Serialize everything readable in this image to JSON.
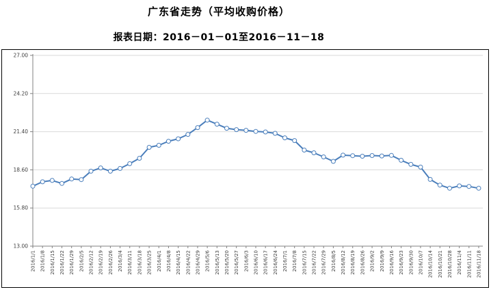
{
  "header": {
    "title": "广东省走势（平均收购价格）",
    "subtitle": "报表日期：2016－01－01至2016－11－18"
  },
  "chart_data": {
    "type": "line",
    "title": "广东省走势（平均收购价格）",
    "subtitle": "报表日期：2016－01－01至2016－11－18",
    "x": [
      "2016/1/1",
      "2016/1/8",
      "2016/1/15",
      "2016/1/22",
      "2016/1/29",
      "2016/2/5",
      "2016/2/12",
      "2016/2/19",
      "2016/2/26",
      "2016/3/4",
      "2016/3/11",
      "2016/3/18",
      "2016/3/25",
      "2016/4/1",
      "2016/4/8",
      "2016/4/15",
      "2016/4/22",
      "2016/4/29",
      "2016/5/6",
      "2016/5/13",
      "2016/5/20",
      "2016/5/27",
      "2016/6/3",
      "2016/6/10",
      "2016/6/17",
      "2016/6/24",
      "2016/7/1",
      "2016/7/8",
      "2016/7/15",
      "2016/7/22",
      "2016/7/29",
      "2016/8/5",
      "2016/8/12",
      "2016/8/19",
      "2016/8/26",
      "2016/9/2",
      "2016/9/9",
      "2016/9/16",
      "2016/9/23",
      "2016/9/30",
      "2016/10/7",
      "2016/10/14",
      "2016/10/21",
      "2016/10/28",
      "2016/11/4",
      "2016/11/11",
      "2016/11/18"
    ],
    "values": [
      17.4,
      17.72,
      17.82,
      17.6,
      17.93,
      17.88,
      18.5,
      18.74,
      18.5,
      18.7,
      19.05,
      19.45,
      20.25,
      20.4,
      20.7,
      20.88,
      21.2,
      21.7,
      22.25,
      21.95,
      21.65,
      21.55,
      21.5,
      21.42,
      21.38,
      21.28,
      20.95,
      20.75,
      20.05,
      19.85,
      19.55,
      19.22,
      19.68,
      19.64,
      19.6,
      19.65,
      19.62,
      19.66,
      19.3,
      19.0,
      18.8,
      17.9,
      17.48,
      17.25,
      17.42,
      17.38,
      17.25
    ],
    "ylim": [
      13.0,
      27.0
    ],
    "yticks": [
      27.0,
      24.2,
      21.4,
      18.6,
      15.8,
      13.0
    ],
    "ytick_labels": [
      "27.00",
      "24.20",
      "21.40",
      "18.60",
      "15.80",
      "13.00"
    ],
    "xlabel": "",
    "ylabel": "",
    "grid": true,
    "legend": false,
    "x_label_rotation": -90,
    "colors": {
      "line": "#4a7ebb",
      "marker_fill": "#ffffff",
      "marker_stroke": "#4a7ebb",
      "grid": "#d9d9d9",
      "axis": "#808080",
      "tick_text": "#404040",
      "border": "#000000"
    }
  }
}
